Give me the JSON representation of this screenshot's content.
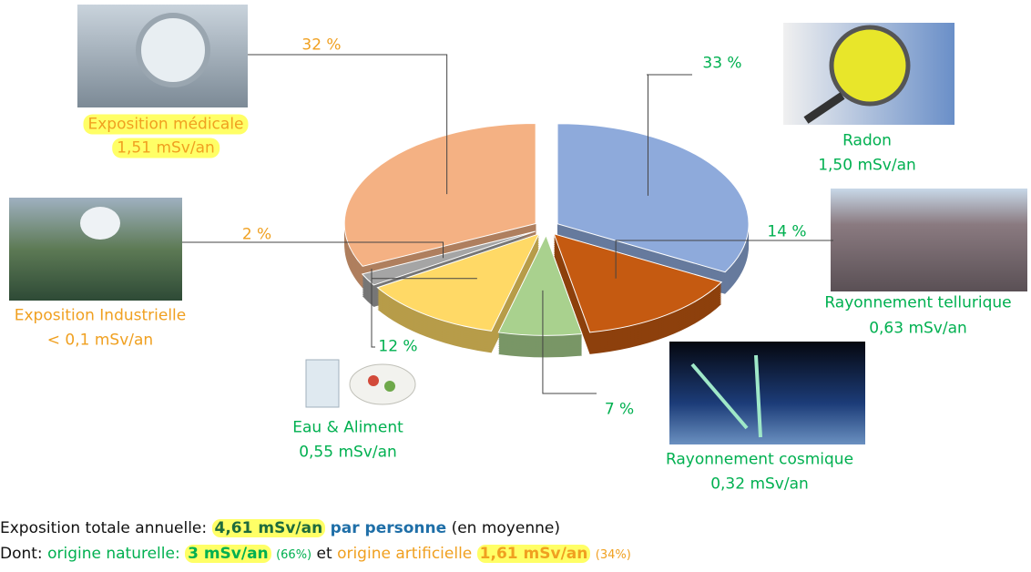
{
  "chart_data": {
    "type": "pie",
    "categories": [
      "Radon",
      "Rayonnement tellurique",
      "Rayonnement cosmique",
      "Eau & Aliment",
      "Exposition Industrielle",
      "Exposition médicale"
    ],
    "values": [
      33,
      14,
      7,
      12,
      2,
      32
    ],
    "value_labels": [
      "33 %",
      "14 %",
      "7 %",
      "12 %",
      "2 %",
      "32 %"
    ],
    "sublabels": [
      "1,50 mSv/an",
      "0,63 mSv/an",
      "0,32 mSv/an",
      "0,55 mSv/an",
      "< 0,1 mSv/an",
      "1,51 mSv/an"
    ],
    "colors": [
      "#8eaadb",
      "#c55a11",
      "#a9d18e",
      "#ffd966",
      "#a5a5a5",
      "#f4b183"
    ]
  },
  "footer": {
    "total_label": "Exposition totale annuelle:",
    "total_value": "4,61 mSv/an",
    "per_person": "par personne",
    "average": "(en moyenne)",
    "dont": "Dont:",
    "natural_label": "origine naturelle:",
    "natural_value": "3 mSv/an",
    "natural_share": "(66%)",
    "et": "et",
    "artificial_label": "origine artificielle",
    "artificial_value": "1,61 mSv/an",
    "artificial_share": "(34%)"
  }
}
